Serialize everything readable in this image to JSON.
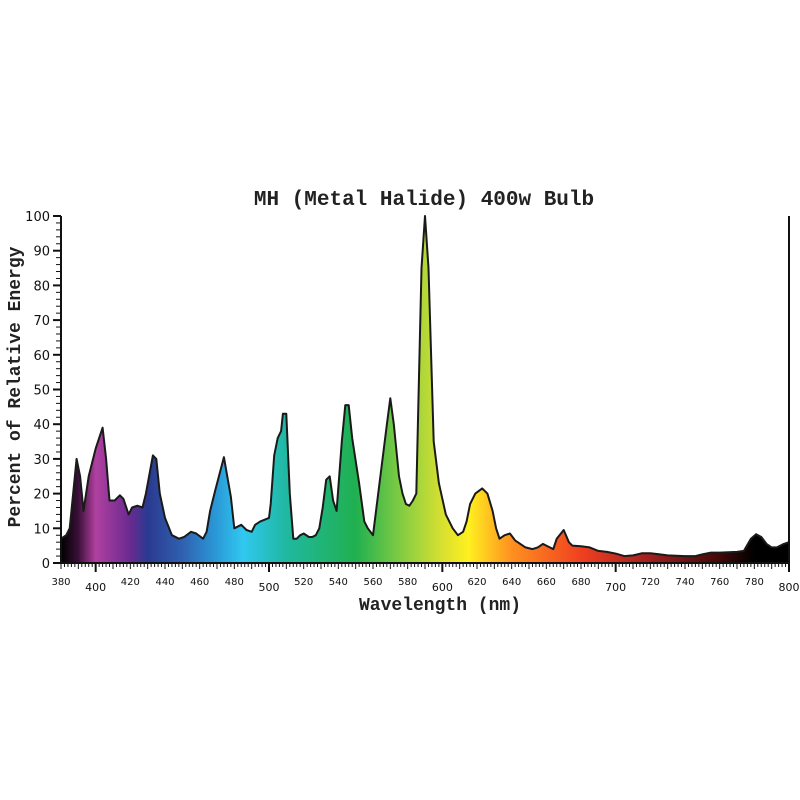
{
  "chart_data": {
    "type": "area",
    "title": "MH (Metal Halide) 400w Bulb",
    "xlabel": "Wavelength (nm)",
    "ylabel": "Percent of Relative Energy",
    "xlim": [
      380,
      800
    ],
    "ylim": [
      0,
      100
    ],
    "grid": false,
    "x_ticks": [
      380,
      400,
      420,
      440,
      460,
      480,
      500,
      520,
      540,
      560,
      580,
      600,
      620,
      640,
      660,
      680,
      700,
      720,
      740,
      760,
      780,
      800
    ],
    "y_ticks": [
      0,
      10,
      20,
      30,
      40,
      50,
      60,
      70,
      80,
      90,
      100
    ],
    "fill": "visible-spectrum-gradient",
    "spectrum_colors": [
      {
        "nm": 380,
        "color": "#000000"
      },
      {
        "nm": 390,
        "color": "#3a1038"
      },
      {
        "nm": 400,
        "color": "#b040a0"
      },
      {
        "nm": 420,
        "color": "#6a2a90"
      },
      {
        "nm": 430,
        "color": "#2a3a90"
      },
      {
        "nm": 450,
        "color": "#3060b0"
      },
      {
        "nm": 470,
        "color": "#2a9ad8"
      },
      {
        "nm": 485,
        "color": "#30c8f0"
      },
      {
        "nm": 510,
        "color": "#20b8a0"
      },
      {
        "nm": 550,
        "color": "#20b050"
      },
      {
        "nm": 580,
        "color": "#90d040"
      },
      {
        "nm": 600,
        "color": "#d8e030"
      },
      {
        "nm": 615,
        "color": "#fff020"
      },
      {
        "nm": 640,
        "color": "#ff9020"
      },
      {
        "nm": 680,
        "color": "#f04020"
      },
      {
        "nm": 720,
        "color": "#a02020"
      },
      {
        "nm": 760,
        "color": "#400808"
      },
      {
        "nm": 780,
        "color": "#000000"
      },
      {
        "nm": 800,
        "color": "#000000"
      }
    ],
    "points": [
      [
        380,
        7
      ],
      [
        383,
        8
      ],
      [
        385,
        10
      ],
      [
        389,
        30
      ],
      [
        391,
        25
      ],
      [
        393,
        15
      ],
      [
        396,
        25
      ],
      [
        400,
        33
      ],
      [
        404,
        39
      ],
      [
        406,
        30
      ],
      [
        408,
        18
      ],
      [
        411,
        18
      ],
      [
        414,
        19.5
      ],
      [
        416,
        18.5
      ],
      [
        419,
        14
      ],
      [
        421,
        16
      ],
      [
        424,
        16.5
      ],
      [
        427,
        16
      ],
      [
        429,
        20
      ],
      [
        433,
        31
      ],
      [
        435,
        30
      ],
      [
        437,
        20
      ],
      [
        440,
        13
      ],
      [
        444,
        8
      ],
      [
        448,
        7
      ],
      [
        451,
        7.5
      ],
      [
        455,
        9
      ],
      [
        458,
        8.5
      ],
      [
        462,
        7
      ],
      [
        464,
        9
      ],
      [
        466,
        15
      ],
      [
        469,
        21
      ],
      [
        474,
        30.5
      ],
      [
        478,
        19
      ],
      [
        480,
        10
      ],
      [
        484,
        11
      ],
      [
        487,
        9.5
      ],
      [
        490,
        9
      ],
      [
        492,
        11
      ],
      [
        495,
        12
      ],
      [
        500,
        13
      ],
      [
        501,
        17
      ],
      [
        503,
        31
      ],
      [
        505,
        36
      ],
      [
        507,
        38
      ],
      [
        508,
        43
      ],
      [
        510,
        43
      ],
      [
        512,
        20
      ],
      [
        514,
        7
      ],
      [
        516,
        7
      ],
      [
        518,
        8
      ],
      [
        520,
        8.5
      ],
      [
        523,
        7.5
      ],
      [
        525,
        7.5
      ],
      [
        527,
        8
      ],
      [
        529,
        10
      ],
      [
        531,
        16
      ],
      [
        533,
        24
      ],
      [
        535,
        25
      ],
      [
        537,
        18
      ],
      [
        539,
        15
      ],
      [
        542,
        35
      ],
      [
        544,
        45.5
      ],
      [
        546,
        45.5
      ],
      [
        548,
        36
      ],
      [
        552,
        23
      ],
      [
        555,
        12
      ],
      [
        557,
        10
      ],
      [
        560,
        8
      ],
      [
        563,
        20
      ],
      [
        568,
        40
      ],
      [
        570,
        47.5
      ],
      [
        572,
        40
      ],
      [
        575,
        25
      ],
      [
        577,
        20
      ],
      [
        579,
        17
      ],
      [
        581,
        16.5
      ],
      [
        583,
        18
      ],
      [
        585,
        20
      ],
      [
        588,
        85
      ],
      [
        590,
        100
      ],
      [
        592,
        85
      ],
      [
        595,
        35
      ],
      [
        598,
        23
      ],
      [
        602,
        14
      ],
      [
        606,
        10
      ],
      [
        609,
        8
      ],
      [
        612,
        9
      ],
      [
        614,
        12
      ],
      [
        616,
        17
      ],
      [
        619,
        20
      ],
      [
        623,
        21.5
      ],
      [
        626,
        20
      ],
      [
        629,
        15
      ],
      [
        631,
        10
      ],
      [
        633,
        7
      ],
      [
        636,
        8
      ],
      [
        639,
        8.5
      ],
      [
        642,
        6.5
      ],
      [
        645,
        5.5
      ],
      [
        648,
        4.5
      ],
      [
        652,
        4
      ],
      [
        655,
        4.5
      ],
      [
        658,
        5.5
      ],
      [
        660,
        5
      ],
      [
        662,
        4.5
      ],
      [
        664,
        4
      ],
      [
        666,
        7
      ],
      [
        670,
        9.5
      ],
      [
        673,
        6
      ],
      [
        675,
        5
      ],
      [
        680,
        4.8
      ],
      [
        685,
        4.5
      ],
      [
        690,
        3.5
      ],
      [
        695,
        3.2
      ],
      [
        700,
        2.7
      ],
      [
        705,
        2
      ],
      [
        710,
        2.2
      ],
      [
        715,
        2.8
      ],
      [
        720,
        2.8
      ],
      [
        725,
        2.5
      ],
      [
        730,
        2.2
      ],
      [
        740,
        2
      ],
      [
        746,
        2
      ],
      [
        750,
        2.5
      ],
      [
        755,
        3
      ],
      [
        760,
        3
      ],
      [
        770,
        3.2
      ],
      [
        774,
        3.5
      ],
      [
        778,
        7
      ],
      [
        781,
        8.3
      ],
      [
        784,
        7.5
      ],
      [
        787,
        5.5
      ],
      [
        790,
        4.5
      ],
      [
        793,
        4.5
      ],
      [
        797,
        5.5
      ],
      [
        800,
        6
      ]
    ]
  }
}
